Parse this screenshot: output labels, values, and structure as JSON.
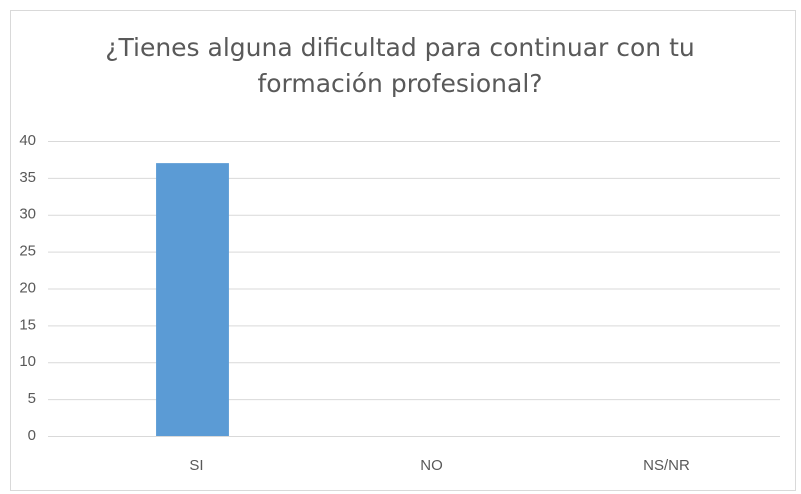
{
  "chart_data": {
    "type": "bar",
    "title": "¿Tienes alguna dificultad para continuar con tu formación profesional?",
    "categories": [
      "SI",
      "NO",
      "NS/NR"
    ],
    "values": [
      37,
      0,
      0
    ],
    "color": "#5b9bd5",
    "ylim": [
      0,
      40
    ],
    "yticks": [
      0,
      5,
      10,
      15,
      20,
      25,
      30,
      35,
      40
    ],
    "grid": true
  }
}
